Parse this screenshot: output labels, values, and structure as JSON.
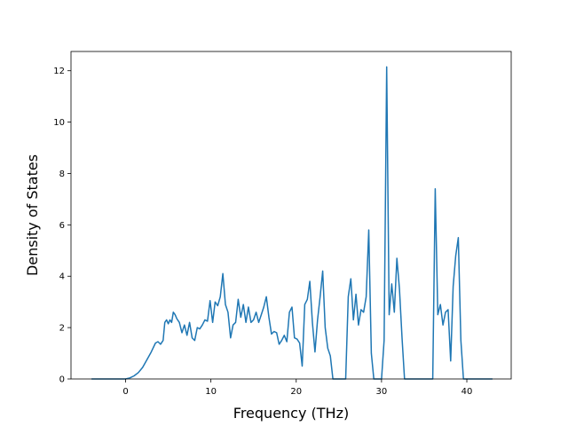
{
  "chart_data": {
    "type": "line",
    "title": "",
    "xlabel": "Frequency (THz)",
    "ylabel": "Density of States",
    "xlim": [
      -6.4,
      45.2
    ],
    "ylim": [
      0,
      12.75
    ],
    "xticks": [
      0,
      10,
      20,
      30,
      40
    ],
    "yticks": [
      0,
      2,
      4,
      6,
      8,
      10,
      12
    ],
    "grid": false,
    "legend": "none",
    "line_color": "#1f77b4",
    "series": [
      {
        "x": [
          -4.0,
          -3.0,
          -2.0,
          -1.0,
          0.0,
          0.5,
          1.0,
          1.5,
          2.0,
          2.5,
          3.0,
          3.5,
          3.8,
          4.1,
          4.4,
          4.6,
          4.8,
          5.0,
          5.2,
          5.4,
          5.6,
          5.8,
          6.0,
          6.3,
          6.6,
          6.9,
          7.2,
          7.5,
          7.8,
          8.1,
          8.4,
          8.7,
          9.0,
          9.3,
          9.6,
          9.9,
          10.2,
          10.5,
          10.8,
          11.1,
          11.4,
          11.7,
          12.0,
          12.3,
          12.6,
          12.9,
          13.2,
          13.5,
          13.8,
          14.1,
          14.4,
          14.7,
          15.0,
          15.3,
          15.6,
          15.9,
          16.2,
          16.5,
          16.8,
          17.1,
          17.4,
          17.7,
          18.0,
          18.3,
          18.6,
          18.9,
          19.2,
          19.5,
          19.8,
          20.1,
          20.4,
          20.7,
          21.0,
          21.3,
          21.6,
          21.9,
          22.2,
          22.5,
          22.8,
          23.1,
          23.4,
          23.7,
          24.0,
          24.3,
          24.6,
          24.9,
          25.2,
          25.5,
          25.8,
          26.1,
          26.4,
          26.7,
          27.0,
          27.3,
          27.6,
          27.9,
          28.2,
          28.5,
          28.8,
          29.1,
          29.4,
          29.7,
          30.0,
          30.3,
          30.6,
          30.9,
          31.2,
          31.5,
          31.8,
          32.1,
          32.4,
          32.7,
          33.0,
          33.3,
          33.6,
          34.0,
          35.0,
          36.0,
          36.3,
          36.6,
          36.9,
          37.2,
          37.5,
          37.8,
          38.1,
          38.4,
          38.7,
          39.0,
          39.3,
          39.6,
          40.0,
          41.0,
          42.0,
          43.0
        ],
        "values": [
          0,
          0,
          0,
          0,
          0,
          0.04,
          0.12,
          0.25,
          0.45,
          0.75,
          1.05,
          1.4,
          1.45,
          1.35,
          1.5,
          2.2,
          2.3,
          2.15,
          2.3,
          2.2,
          2.6,
          2.5,
          2.35,
          2.2,
          1.8,
          2.1,
          1.7,
          2.2,
          1.6,
          1.5,
          2.0,
          1.95,
          2.1,
          2.3,
          2.25,
          3.05,
          2.2,
          3.0,
          2.85,
          3.2,
          4.1,
          2.9,
          2.6,
          1.6,
          2.1,
          2.2,
          3.1,
          2.4,
          2.9,
          2.2,
          2.8,
          2.2,
          2.3,
          2.6,
          2.2,
          2.5,
          2.8,
          3.2,
          2.4,
          1.75,
          1.85,
          1.8,
          1.35,
          1.5,
          1.7,
          1.45,
          2.6,
          2.8,
          1.6,
          1.55,
          1.4,
          0.5,
          2.9,
          3.1,
          3.8,
          2.2,
          1.05,
          2.3,
          3.2,
          4.2,
          2.0,
          1.2,
          0.9,
          0.0,
          0.0,
          0.0,
          0.0,
          0.0,
          0.0,
          3.2,
          3.9,
          2.3,
          3.3,
          2.1,
          2.7,
          2.6,
          3.2,
          5.8,
          1.0,
          0.0,
          0.0,
          0.0,
          0.0,
          1.5,
          12.15,
          2.5,
          3.7,
          2.6,
          4.7,
          3.5,
          1.6,
          0.0,
          0.0,
          0.0,
          0.0,
          0.0,
          0.0,
          0.0,
          7.4,
          2.5,
          2.9,
          2.1,
          2.6,
          2.7,
          0.7,
          3.6,
          4.8,
          5.5,
          1.5,
          0.0,
          0.0,
          0.0,
          0.0,
          0.0
        ]
      }
    ]
  }
}
